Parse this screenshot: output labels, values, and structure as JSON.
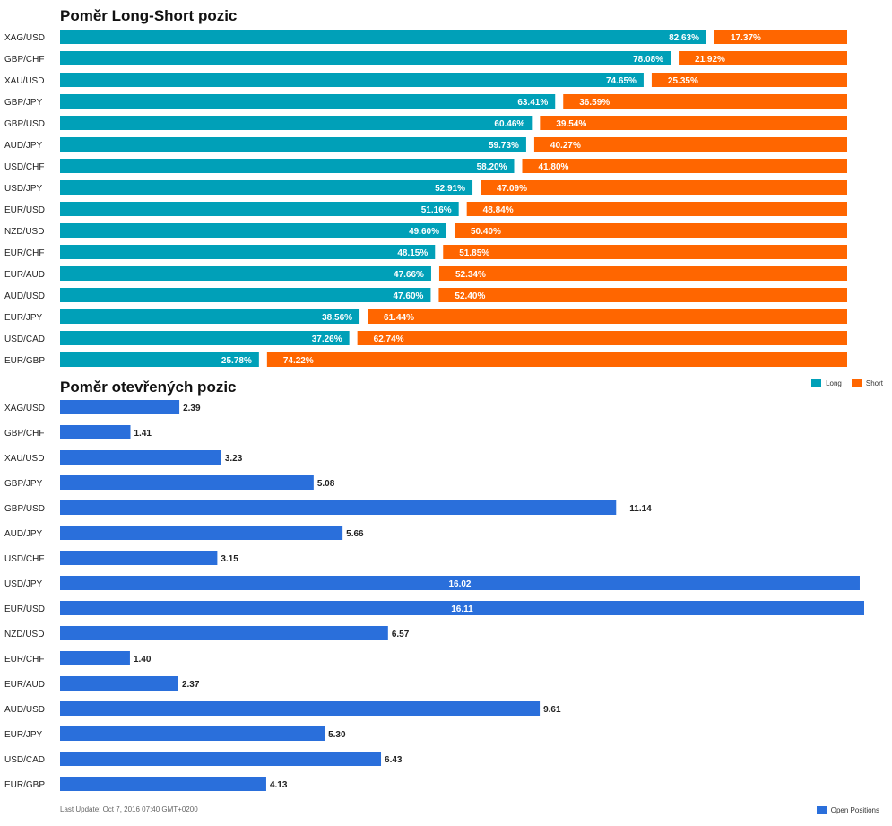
{
  "chart_data": [
    {
      "type": "bar",
      "stacked": true,
      "orientation": "horizontal",
      "title": "Poměr Long-Short pozic",
      "categories": [
        "XAG/USD",
        "GBP/CHF",
        "XAU/USD",
        "GBP/JPY",
        "GBP/USD",
        "AUD/JPY",
        "USD/CHF",
        "USD/JPY",
        "EUR/USD",
        "NZD/USD",
        "EUR/CHF",
        "EUR/AUD",
        "AUD/USD",
        "EUR/JPY",
        "USD/CAD",
        "EUR/GBP"
      ],
      "series": [
        {
          "name": "Long",
          "color": "#00a0b8",
          "values": [
            82.63,
            78.08,
            74.65,
            63.41,
            60.46,
            59.73,
            58.2,
            52.91,
            51.16,
            49.6,
            48.15,
            47.66,
            47.6,
            38.56,
            37.26,
            25.78
          ],
          "labels": [
            "82.63%",
            "78.08%",
            "74.65%",
            "63.41%",
            "60.46%",
            "59.73%",
            "58.20%",
            "52.91%",
            "51.16%",
            "49.60%",
            "48.15%",
            "47.66%",
            "47.60%",
            "38.56%",
            "37.26%",
            "25.78%"
          ]
        },
        {
          "name": "Short",
          "color": "#ff6600",
          "values": [
            17.37,
            21.92,
            25.35,
            36.59,
            39.54,
            40.27,
            41.8,
            47.09,
            48.84,
            50.4,
            51.85,
            52.34,
            52.4,
            61.44,
            62.74,
            74.22
          ],
          "labels": [
            "17.37%",
            "21.92%",
            "25.35%",
            "36.59%",
            "39.54%",
            "40.27%",
            "41.80%",
            "47.09%",
            "48.84%",
            "50.40%",
            "51.85%",
            "52.34%",
            "52.40%",
            "61.44%",
            "62.74%",
            "74.22%"
          ]
        }
      ],
      "xlim": [
        0,
        100
      ],
      "legend": "top-right",
      "grid": false
    },
    {
      "type": "bar",
      "orientation": "horizontal",
      "title": "Poměr otevřených pozic",
      "categories": [
        "XAG/USD",
        "GBP/CHF",
        "XAU/USD",
        "GBP/JPY",
        "GBP/USD",
        "AUD/JPY",
        "USD/CHF",
        "USD/JPY",
        "EUR/USD",
        "NZD/USD",
        "EUR/CHF",
        "EUR/AUD",
        "AUD/USD",
        "EUR/JPY",
        "USD/CAD",
        "EUR/GBP"
      ],
      "series": [
        {
          "name": "Open Positions",
          "color": "#2a6fdb",
          "values": [
            2.39,
            1.41,
            3.23,
            5.08,
            11.14,
            5.66,
            3.15,
            16.02,
            16.11,
            6.57,
            1.4,
            2.37,
            9.61,
            5.3,
            6.43,
            4.13
          ],
          "labels": [
            "2.39",
            "1.41",
            "3.23",
            "5.08",
            "11.14",
            "5.66",
            "3.15",
            "16.02",
            "16.11",
            "6.57",
            "1.40",
            "2.37",
            "9.61",
            "5.30",
            "6.43",
            "4.13"
          ]
        }
      ],
      "xlim": [
        0,
        16.11
      ],
      "legend": "bottom-right",
      "grid": false
    }
  ],
  "legend": {
    "long": "Long",
    "short": "Short",
    "open": "Open Positions"
  },
  "footer": "Last Update: Oct 7, 2016 07:40 GMT+0200"
}
